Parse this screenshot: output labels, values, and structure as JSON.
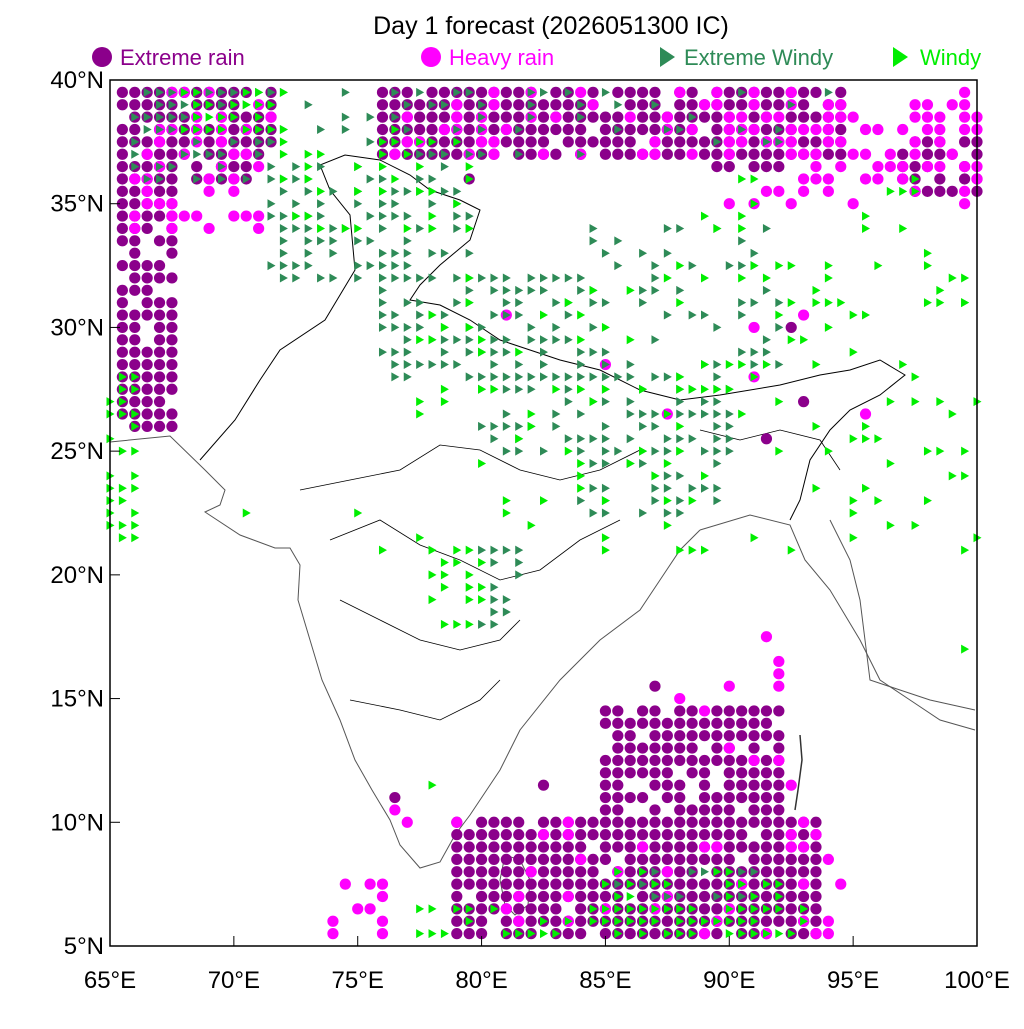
{
  "title": "Day 1 forecast (2026051300 IC)",
  "legend": [
    {
      "label": "Extreme rain",
      "symbol": "circle",
      "color": "#8b008b"
    },
    {
      "label": "Heavy rain",
      "symbol": "circle",
      "color": "#ff00ff"
    },
    {
      "label": "Extreme Windy",
      "symbol": "triangle",
      "color": "#2e8b57"
    },
    {
      "label": "Windy",
      "symbol": "triangle",
      "color": "#00ee00"
    }
  ],
  "x_ticks": [
    "65°E",
    "70°E",
    "75°E",
    "80°E",
    "85°E",
    "90°E",
    "95°E",
    "100°E"
  ],
  "y_ticks": [
    "40°N",
    "35°N",
    "30°N",
    "25°N",
    "20°N",
    "15°N",
    "10°N",
    "5°N"
  ],
  "extent": {
    "lon_min": 65,
    "lon_max": 100,
    "lat_min": 5,
    "lat_max": 40
  },
  "grid_step_deg": 0.5,
  "colors": {
    "extreme_rain": "#8b008b",
    "heavy_rain": "#ff00ff",
    "extreme_windy": "#2e8b57",
    "windy": "#00ee00",
    "coast": "#555555",
    "state_border": "#000000"
  },
  "chart_data": {
    "type": "scatter",
    "title": "Day 1 forecast (2026051300 IC)",
    "xlim": [
      65,
      100
    ],
    "ylim": [
      5,
      40
    ],
    "series": [
      {
        "name": "Extreme rain",
        "regions": [
          {
            "lon": [
              65.5,
              67.5
            ],
            "lat": [
              26.0,
              39.5
            ],
            "density": 0.9
          },
          {
            "lon": [
              67.5,
              71.5
            ],
            "lat": [
              36.0,
              39.5
            ],
            "density": 0.75
          },
          {
            "lon": [
              76.0,
              94.5
            ],
            "lat": [
              37.0,
              39.5
            ],
            "density": 0.9
          },
          {
            "lon": [
              97.0,
              100.0
            ],
            "lat": [
              35.5,
              37.5
            ],
            "density": 0.7
          },
          {
            "lon": [
              79.0,
              93.5
            ],
            "lat": [
              5.5,
              10.0
            ],
            "density": 0.92
          },
          {
            "lon": [
              85.0,
              92.0
            ],
            "lat": [
              10.0,
              14.5
            ],
            "density": 0.85
          },
          {
            "lon": [
              89.5,
              92.0
            ],
            "lat": [
              36.5,
              37.5
            ],
            "density": 0.7
          }
        ],
        "points": [
          [
            76.5,
            11.0
          ],
          [
            82.5,
            11.5
          ],
          [
            87.0,
            15.5
          ],
          [
            91.5,
            25.5
          ],
          [
            92.5,
            30.0
          ],
          [
            93.0,
            27.0
          ],
          [
            79.5,
            36.0
          ]
        ]
      },
      {
        "name": "Heavy rain",
        "regions": [
          {
            "lon": [
              66.0,
              71.5
            ],
            "lat": [
              34.0,
              39.5
            ],
            "density": 0.3
          },
          {
            "lon": [
              76.0,
              94.5
            ],
            "lat": [
              37.0,
              39.5
            ],
            "density": 0.22
          },
          {
            "lon": [
              90.0,
              100.0
            ],
            "lat": [
              35.0,
              39.0
            ],
            "density": 0.35
          },
          {
            "lon": [
              79.0,
              93.5
            ],
            "lat": [
              5.5,
              10.0
            ],
            "density": 0.12
          },
          {
            "lon": [
              74.0,
              76.0
            ],
            "lat": [
              5.5,
              7.5
            ],
            "density": 0.5
          }
        ],
        "points": [
          [
            77.0,
            10.0
          ],
          [
            76.5,
            10.5
          ],
          [
            81.0,
            30.5
          ],
          [
            85.0,
            28.5
          ],
          [
            87.5,
            26.5
          ],
          [
            91.0,
            28.0
          ],
          [
            91.0,
            30.0
          ],
          [
            93.0,
            30.5
          ],
          [
            95.5,
            26.5
          ],
          [
            91.5,
            17.5
          ],
          [
            92.0,
            16.5
          ],
          [
            92.0,
            16.0
          ],
          [
            92.0,
            15.5
          ],
          [
            90.0,
            15.5
          ],
          [
            88.0,
            15.0
          ],
          [
            89.0,
            14.5
          ],
          [
            90.0,
            13.0
          ],
          [
            91.0,
            12.5
          ],
          [
            92.0,
            12.5
          ],
          [
            92.5,
            11.5
          ],
          [
            93.5,
            9.5
          ],
          [
            94.0,
            8.5
          ],
          [
            94.5,
            7.5
          ],
          [
            94.0,
            6.0
          ],
          [
            94.0,
            5.5
          ],
          [
            93.5,
            5.5
          ],
          [
            99.5,
            39.5
          ]
        ]
      },
      {
        "name": "Extreme Windy",
        "regions": [
          {
            "lon": [
              66.0,
              71.5
            ],
            "lat": [
              36.0,
              39.5
            ],
            "density": 0.5
          },
          {
            "lon": [
              71.5,
              80.0
            ],
            "lat": [
              34.0,
              39.5
            ],
            "density": 0.28
          },
          {
            "lon": [
              71.5,
              79.5
            ],
            "lat": [
              32.0,
              35.5
            ],
            "density": 0.55
          },
          {
            "lon": [
              76.0,
              84.0
            ],
            "lat": [
              28.0,
              32.0
            ],
            "density": 0.6
          },
          {
            "lon": [
              80.0,
              90.0
            ],
            "lat": [
              25.0,
              28.0
            ],
            "density": 0.55
          },
          {
            "lon": [
              84.0,
              89.5
            ],
            "lat": [
              22.5,
              25.0
            ],
            "density": 0.45
          },
          {
            "lon": [
              84.0,
              92.0
            ],
            "lat": [
              28.5,
              34.0
            ],
            "density": 0.25
          },
          {
            "lon": [
              80.0,
              81.5
            ],
            "lat": [
              18.0,
              21.0
            ],
            "density": 0.45
          },
          {
            "lon": [
              85.0,
              91.5
            ],
            "lat": [
              6.0,
              8.0
            ],
            "density": 0.45
          },
          {
            "lon": [
              76.0,
              94.0
            ],
            "lat": [
              37.0,
              39.5
            ],
            "density": 0.15
          }
        ]
      },
      {
        "name": "Windy",
        "regions": [
          {
            "lon": [
              68.0,
              72.0
            ],
            "lat": [
              38.0,
              39.5
            ],
            "density": 0.6
          },
          {
            "lon": [
              72.0,
              80.0
            ],
            "lat": [
              34.0,
              38.0
            ],
            "density": 0.2
          },
          {
            "lon": [
              65.0,
              66.0
            ],
            "lat": [
              21.5,
              28.0
            ],
            "density": 0.6
          },
          {
            "lon": [
              77.0,
              100.0
            ],
            "lat": [
              21.0,
              32.0
            ],
            "density": 0.12
          },
          {
            "lon": [
              88.0,
              98.0
            ],
            "lat": [
              31.0,
              36.0
            ],
            "density": 0.15
          },
          {
            "lon": [
              85.0,
              92.0
            ],
            "lat": [
              6.0,
              8.0
            ],
            "density": 0.45
          },
          {
            "lon": [
              77.5,
              93.0
            ],
            "lat": [
              5.5,
              6.5
            ],
            "density": 0.45
          },
          {
            "lon": [
              78.0,
              80.0
            ],
            "lat": [
              18.0,
              21.0
            ],
            "density": 0.3
          }
        ],
        "points": [
          [
            70.5,
            22.5
          ],
          [
            75.0,
            22.5
          ],
          [
            76.0,
            21.0
          ],
          [
            78.0,
            11.5
          ],
          [
            99.5,
            17.0
          ],
          [
            99.5,
            31.0
          ],
          [
            98.5,
            31.0
          ]
        ]
      }
    ]
  }
}
